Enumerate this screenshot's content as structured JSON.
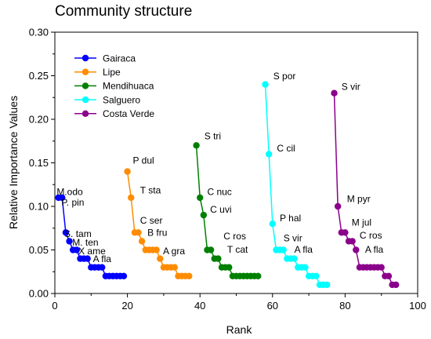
{
  "chart_data": {
    "type": "line",
    "title": "Community structure",
    "xlabel": "Rank",
    "ylabel": "Relative Importance Values",
    "xlim": [
      0,
      100
    ],
    "ylim": [
      0,
      0.3
    ],
    "x_ticks": [
      "0",
      "20",
      "40",
      "60",
      "80",
      "100"
    ],
    "y_ticks": [
      "0.00",
      "0.05",
      "0.10",
      "0.15",
      "0.20",
      "0.25",
      "0.30"
    ],
    "grid": false,
    "legend_position": "top-left",
    "series": [
      {
        "name": "Gairaca",
        "color": "#0000ff",
        "x": [
          1,
          2,
          3,
          4,
          5,
          6,
          7,
          8,
          9,
          10,
          11,
          12,
          13,
          14,
          15,
          16,
          17,
          18,
          19
        ],
        "y": [
          0.11,
          0.11,
          0.07,
          0.06,
          0.05,
          0.05,
          0.04,
          0.04,
          0.04,
          0.03,
          0.03,
          0.03,
          0.03,
          0.02,
          0.02,
          0.02,
          0.02,
          0.02,
          0.02
        ]
      },
      {
        "name": "Lipe",
        "color": "#ff8c00",
        "x": [
          20,
          21,
          22,
          23,
          24,
          25,
          26,
          27,
          28,
          29,
          30,
          31,
          32,
          33,
          34,
          35,
          36,
          37
        ],
        "y": [
          0.14,
          0.11,
          0.07,
          0.07,
          0.06,
          0.05,
          0.05,
          0.05,
          0.05,
          0.04,
          0.03,
          0.03,
          0.03,
          0.03,
          0.02,
          0.02,
          0.02,
          0.02
        ]
      },
      {
        "name": "Mendihuaca",
        "color": "#008000",
        "x": [
          39,
          40,
          41,
          42,
          43,
          44,
          45,
          46,
          47,
          48,
          49,
          50,
          51,
          52,
          53,
          54,
          55,
          56
        ],
        "y": [
          0.17,
          0.11,
          0.09,
          0.05,
          0.05,
          0.04,
          0.04,
          0.03,
          0.03,
          0.03,
          0.02,
          0.02,
          0.02,
          0.02,
          0.02,
          0.02,
          0.02,
          0.02
        ]
      },
      {
        "name": "Salguero",
        "color": "#00ffff",
        "x": [
          58,
          59,
          60,
          61,
          62,
          63,
          64,
          65,
          66,
          67,
          68,
          69,
          70,
          71,
          72,
          73,
          74,
          75
        ],
        "y": [
          0.24,
          0.16,
          0.08,
          0.05,
          0.05,
          0.05,
          0.04,
          0.04,
          0.04,
          0.03,
          0.03,
          0.03,
          0.02,
          0.02,
          0.02,
          0.01,
          0.01,
          0.01
        ]
      },
      {
        "name": "Costa Verde",
        "color": "#8b008b",
        "x": [
          77,
          78,
          79,
          80,
          81,
          82,
          83,
          84,
          85,
          86,
          87,
          88,
          89,
          90,
          91,
          92,
          93,
          94
        ],
        "y": [
          0.23,
          0.1,
          0.07,
          0.07,
          0.06,
          0.06,
          0.05,
          0.03,
          0.03,
          0.03,
          0.03,
          0.03,
          0.03,
          0.03,
          0.02,
          0.02,
          0.01,
          0.01
        ]
      }
    ],
    "annotations": [
      {
        "text": "M.odo",
        "x": 0.5,
        "y": 0.113
      },
      {
        "text": "P. pin",
        "x": 1.8,
        "y": 0.101
      },
      {
        "text": "S. tam",
        "x": 2.6,
        "y": 0.065
      },
      {
        "text": "M. ten",
        "x": 4.8,
        "y": 0.055
      },
      {
        "text": "X ame",
        "x": 6.5,
        "y": 0.045
      },
      {
        "text": "A fla",
        "x": 10.5,
        "y": 0.036
      },
      {
        "text": "P dul",
        "x": 21.5,
        "y": 0.149
      },
      {
        "text": "T sta",
        "x": 23.5,
        "y": 0.115
      },
      {
        "text": "C ser",
        "x": 23.5,
        "y": 0.08
      },
      {
        "text": "B fru",
        "x": 25.5,
        "y": 0.066
      },
      {
        "text": "A gra",
        "x": 29.8,
        "y": 0.045
      },
      {
        "text": "S tri",
        "x": 41.2,
        "y": 0.177
      },
      {
        "text": "C nuc",
        "x": 42.0,
        "y": 0.113
      },
      {
        "text": "C uvi",
        "x": 42.8,
        "y": 0.093
      },
      {
        "text": "C ros",
        "x": 46.5,
        "y": 0.062
      },
      {
        "text": "T cat",
        "x": 47.5,
        "y": 0.047
      },
      {
        "text": "S por",
        "x": 60.2,
        "y": 0.246
      },
      {
        "text": "C cil",
        "x": 61.2,
        "y": 0.163
      },
      {
        "text": "P hal",
        "x": 62.0,
        "y": 0.083
      },
      {
        "text": "S vir",
        "x": 63.0,
        "y": 0.06
      },
      {
        "text": "A fla",
        "x": 66.0,
        "y": 0.047
      },
      {
        "text": "S vir",
        "x": 79.0,
        "y": 0.234
      },
      {
        "text": "M pyr",
        "x": 80.5,
        "y": 0.105
      },
      {
        "text": "M jul",
        "x": 81.8,
        "y": 0.078
      },
      {
        "text": "C ros",
        "x": 84.0,
        "y": 0.063
      },
      {
        "text": "A fla",
        "x": 85.5,
        "y": 0.047
      }
    ]
  }
}
